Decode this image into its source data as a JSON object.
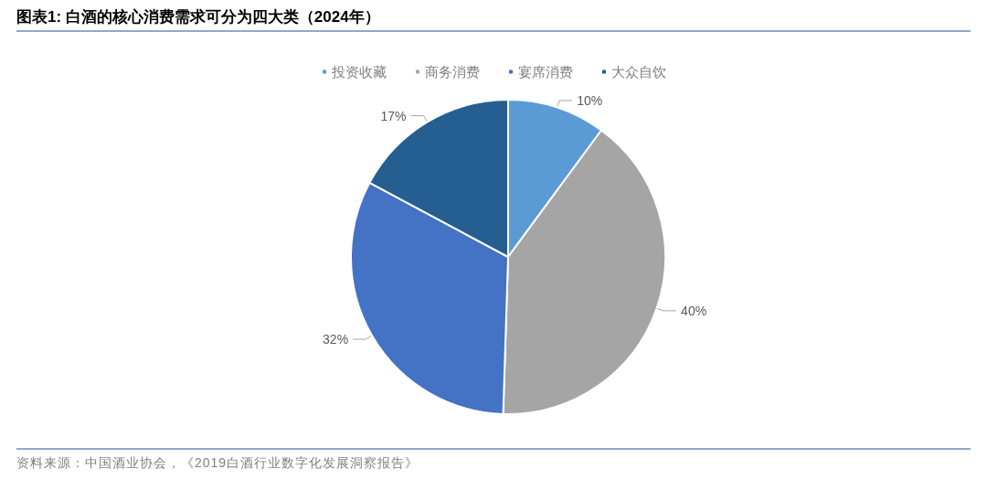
{
  "chart_data": {
    "type": "pie",
    "title": "图表1: 白酒的核心消费需求可分为四大类（2024年）",
    "categories": [
      "投资收藏",
      "商务消费",
      "宴席消费",
      "大众自饮"
    ],
    "values": [
      10,
      40,
      32,
      17
    ],
    "value_labels": [
      "10%",
      "40%",
      "32%",
      "17%"
    ],
    "colors": [
      "#5b9bd5",
      "#a5a5a5",
      "#4472c4",
      "#255e91"
    ],
    "legend": "top",
    "annotations": [
      "资料来源：中国酒业协会，《2019白酒行业数字化发展洞察报告》"
    ]
  }
}
